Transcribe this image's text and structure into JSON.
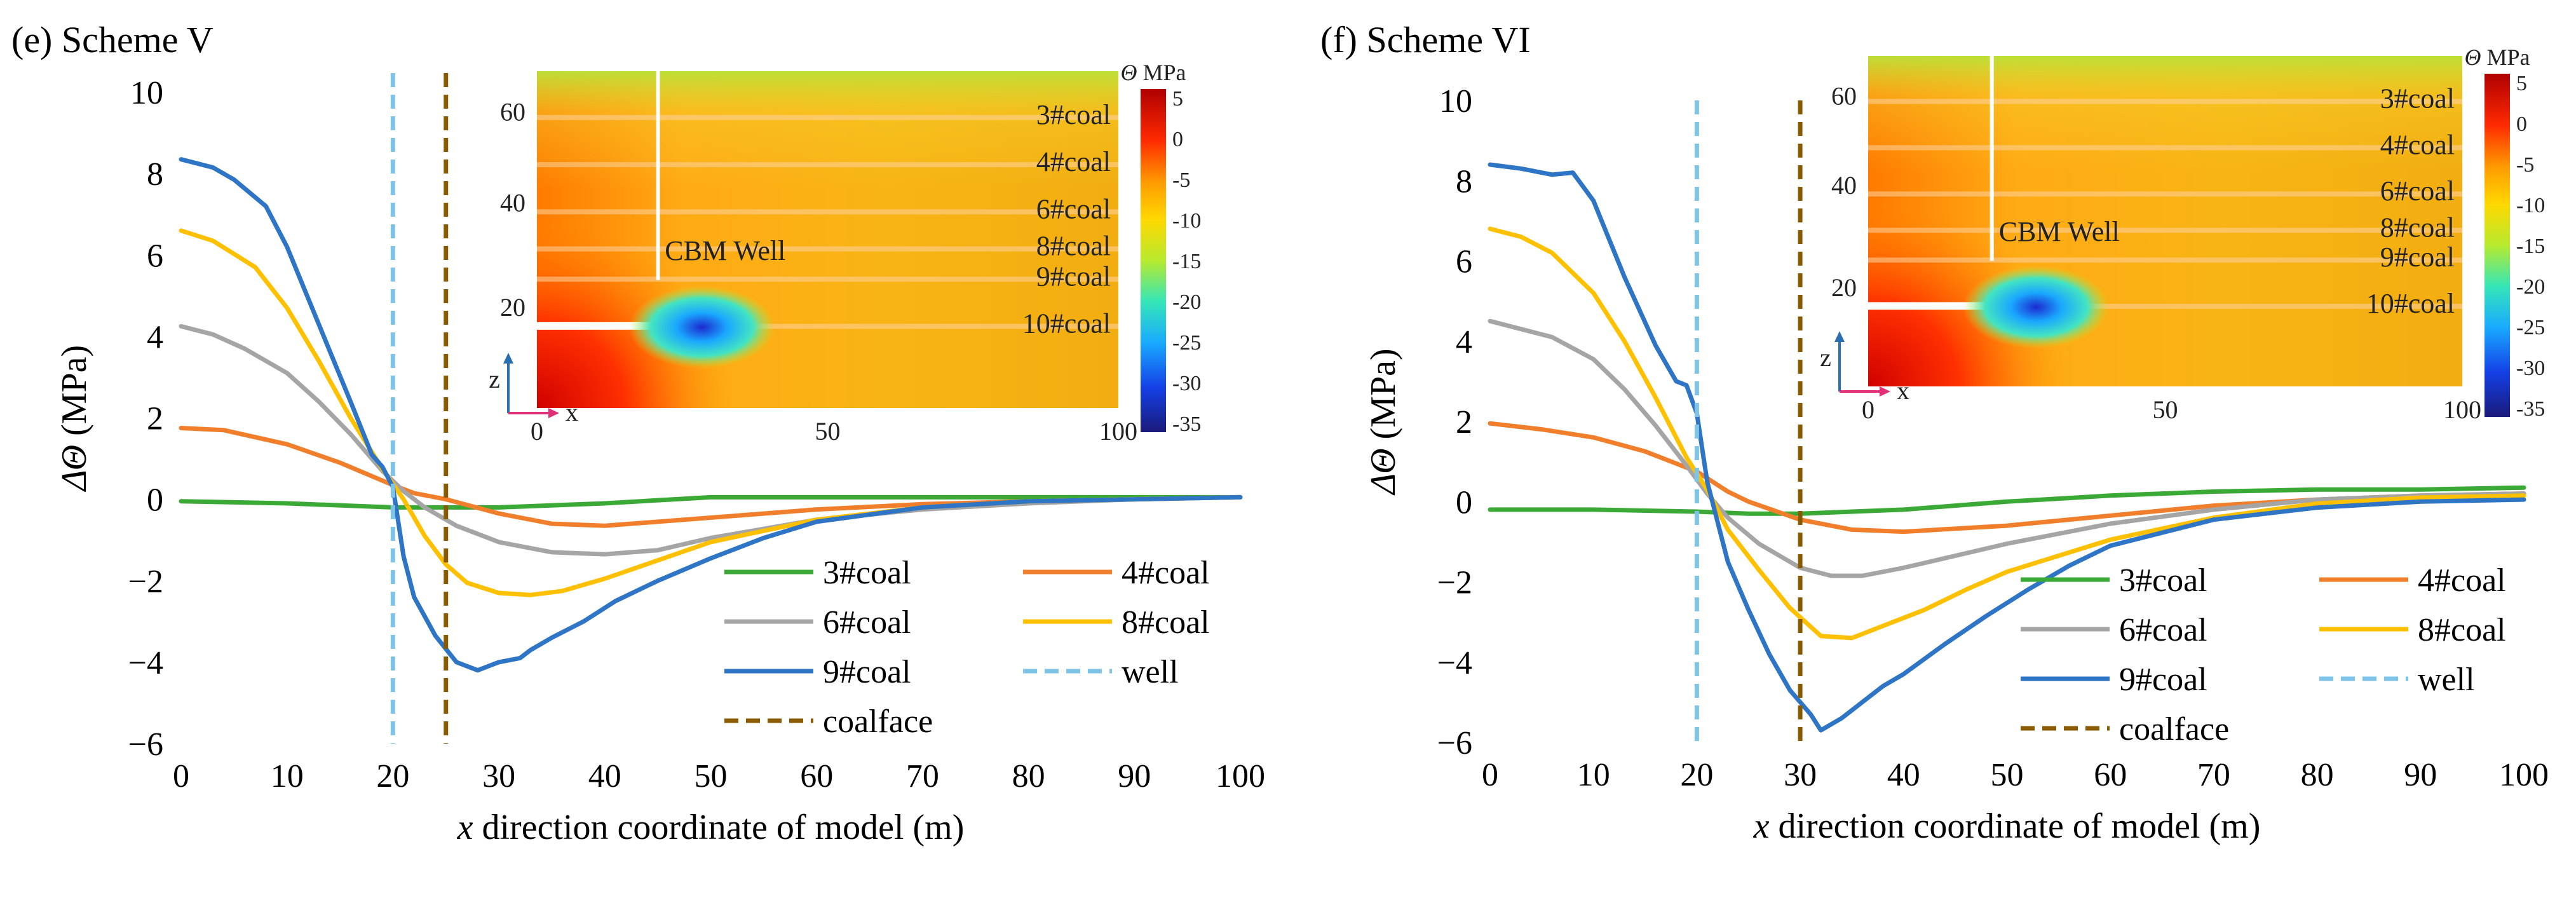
{
  "panels": [
    {
      "id": "e",
      "title": "(e) Scheme V",
      "chart_data": {
        "type": "line",
        "ylabel_symbol": "ΔΘ",
        "ylabel_unit": "(MPa)",
        "xlabel_symbol": "x",
        "xlabel_rest": "direction coordinate of model (m)",
        "xlim": [
          0,
          100
        ],
        "ylim": [
          -6,
          10
        ],
        "xticks": [
          0,
          10,
          20,
          30,
          40,
          50,
          60,
          70,
          80,
          90,
          100
        ],
        "yticks": [
          -6,
          -4,
          -2,
          0,
          2,
          4,
          6,
          8,
          10
        ],
        "series": [
          {
            "name": "3#coal",
            "color": "#3aa935",
            "style": "solid",
            "x": [
              0,
              10,
              20,
              22,
              25,
              30,
              40,
              50,
              60,
              70,
              80,
              90,
              100
            ],
            "y": [
              -0.05,
              -0.1,
              -0.2,
              -0.2,
              -0.2,
              -0.2,
              -0.1,
              0.05,
              0.05,
              0.05,
              0.05,
              0.05,
              0.05
            ]
          },
          {
            "name": "4#coal",
            "color": "#f07e2b",
            "style": "solid",
            "x": [
              0,
              4,
              10,
              15,
              20,
              22,
              25,
              30,
              35,
              40,
              50,
              60,
              70,
              80,
              90,
              100
            ],
            "y": [
              1.75,
              1.7,
              1.35,
              0.9,
              0.35,
              0.15,
              0.0,
              -0.35,
              -0.6,
              -0.65,
              -0.45,
              -0.25,
              -0.12,
              -0.05,
              0.0,
              0.05
            ]
          },
          {
            "name": "6#coal",
            "color": "#a5a5a5",
            "style": "solid",
            "x": [
              0,
              3,
              6,
              10,
              13,
              16,
              19,
              21,
              23,
              26,
              30,
              35,
              40,
              45,
              50,
              60,
              70,
              80,
              90,
              100
            ],
            "y": [
              4.25,
              4.05,
              3.7,
              3.1,
              2.4,
              1.6,
              0.7,
              0.2,
              -0.2,
              -0.65,
              -1.05,
              -1.3,
              -1.35,
              -1.25,
              -0.95,
              -0.5,
              -0.25,
              -0.1,
              0.0,
              0.05
            ]
          },
          {
            "name": "8#coal",
            "color": "#ffc000",
            "style": "solid",
            "x": [
              0,
              3,
              7,
              10,
              13,
              16,
              19,
              21,
              23,
              25,
              27,
              30,
              33,
              36,
              40,
              45,
              50,
              60,
              70,
              80,
              90,
              100
            ],
            "y": [
              6.6,
              6.35,
              5.7,
              4.7,
              3.4,
              2.0,
              0.75,
              0.0,
              -0.9,
              -1.6,
              -2.05,
              -2.3,
              -2.35,
              -2.25,
              -1.95,
              -1.5,
              -1.05,
              -0.5,
              -0.2,
              -0.05,
              0.0,
              0.05
            ]
          },
          {
            "name": "9#coal",
            "color": "#2e75c6",
            "style": "solid",
            "x": [
              0,
              3,
              5,
              8,
              10,
              13,
              16,
              18,
              19,
              20,
              21,
              22,
              24,
              26,
              28,
              30,
              32,
              33,
              35,
              38,
              41,
              45,
              50,
              55,
              60,
              70,
              80,
              90,
              100
            ],
            "y": [
              8.35,
              8.15,
              7.85,
              7.2,
              6.2,
              4.3,
              2.4,
              1.1,
              0.8,
              0.3,
              -1.4,
              -2.4,
              -3.35,
              -4.0,
              -4.2,
              -4.0,
              -3.9,
              -3.7,
              -3.4,
              -3.0,
              -2.5,
              -2.0,
              -1.45,
              -0.95,
              -0.55,
              -0.2,
              -0.05,
              0.0,
              0.05
            ]
          },
          {
            "name": "well",
            "color": "#7fc4e8",
            "style": "dash",
            "vline": 20
          },
          {
            "name": "coalface",
            "color": "#8a5a00",
            "style": "dash",
            "vline": 25
          }
        ]
      },
      "inset": {
        "xticks": [
          "0",
          "50",
          "100"
        ],
        "yticks": [
          "60",
          "40",
          "20"
        ],
        "axis_x": "x",
        "axis_z": "z",
        "labels": [
          "3#coal",
          "4#coal",
          "6#coal",
          "8#coal",
          "9#coal",
          "10#coal"
        ],
        "well_label": "CBM Well",
        "colorbar_title_symbol": "Θ",
        "colorbar_title_unit": "MPa",
        "colorbar_ticks": [
          "5",
          "0",
          "-5",
          "-10",
          "-15",
          "-20",
          "-25",
          "-30",
          "-35"
        ]
      }
    },
    {
      "id": "f",
      "title": "(f) Scheme VI",
      "chart_data": {
        "type": "line",
        "ylabel_symbol": "ΔΘ",
        "ylabel_unit": "(MPa)",
        "xlabel_symbol": "x",
        "xlabel_rest": "direction coordinate of model (m)",
        "xlim": [
          0,
          100
        ],
        "ylim": [
          -6,
          10
        ],
        "xticks": [
          0,
          10,
          20,
          30,
          40,
          50,
          60,
          70,
          80,
          90,
          100
        ],
        "yticks": [
          -6,
          -4,
          -2,
          0,
          2,
          4,
          6,
          8,
          10
        ],
        "series": [
          {
            "name": "3#coal",
            "color": "#3aa935",
            "style": "solid",
            "x": [
              0,
              10,
              20,
              25,
              30,
              40,
              50,
              60,
              70,
              80,
              90,
              100
            ],
            "y": [
              -0.2,
              -0.2,
              -0.25,
              -0.3,
              -0.3,
              -0.2,
              0.0,
              0.15,
              0.25,
              0.3,
              0.3,
              0.35
            ]
          },
          {
            "name": "4#coal",
            "color": "#f07e2b",
            "style": "solid",
            "x": [
              0,
              5,
              10,
              15,
              20,
              23,
              25,
              30,
              35,
              40,
              50,
              60,
              70,
              80,
              90,
              100
            ],
            "y": [
              1.95,
              1.8,
              1.6,
              1.25,
              0.75,
              0.25,
              0.0,
              -0.45,
              -0.7,
              -0.75,
              -0.6,
              -0.35,
              -0.1,
              0.05,
              0.15,
              0.2
            ]
          },
          {
            "name": "6#coal",
            "color": "#a5a5a5",
            "style": "solid",
            "x": [
              0,
              3,
              6,
              10,
              13,
              16,
              19,
              21,
              23,
              26,
              30,
              33,
              36,
              40,
              45,
              50,
              60,
              70,
              80,
              90,
              100
            ],
            "y": [
              4.5,
              4.3,
              4.1,
              3.55,
              2.8,
              1.9,
              0.9,
              0.2,
              -0.4,
              -1.05,
              -1.65,
              -1.85,
              -1.85,
              -1.65,
              -1.35,
              -1.05,
              -0.55,
              -0.2,
              0.05,
              0.15,
              0.2
            ]
          },
          {
            "name": "8#coal",
            "color": "#ffc000",
            "style": "solid",
            "x": [
              0,
              3,
              6,
              10,
              13,
              16,
              19,
              21,
              23,
              26,
              29,
              32,
              35,
              38,
              42,
              46,
              50,
              60,
              70,
              80,
              90,
              100
            ],
            "y": [
              6.8,
              6.6,
              6.2,
              5.2,
              4.0,
              2.6,
              1.1,
              0.3,
              -0.7,
              -1.7,
              -2.65,
              -3.35,
              -3.4,
              -3.1,
              -2.7,
              -2.2,
              -1.75,
              -0.95,
              -0.4,
              -0.05,
              0.1,
              0.15
            ]
          },
          {
            "name": "9#coal",
            "color": "#2e75c6",
            "style": "solid",
            "x": [
              0,
              3,
              6,
              8,
              10,
              13,
              16,
              18,
              19,
              20,
              21,
              23,
              25,
              27,
              29,
              31,
              32,
              34,
              36,
              38,
              40,
              44,
              48,
              52,
              56,
              60,
              70,
              80,
              90,
              100
            ],
            "y": [
              8.4,
              8.3,
              8.15,
              8.2,
              7.5,
              5.6,
              3.9,
              3.0,
              2.9,
              2.2,
              0.5,
              -1.5,
              -2.7,
              -3.8,
              -4.7,
              -5.3,
              -5.7,
              -5.4,
              -5.0,
              -4.6,
              -4.3,
              -3.55,
              -2.85,
              -2.2,
              -1.6,
              -1.1,
              -0.45,
              -0.15,
              0.0,
              0.05
            ]
          },
          {
            "name": "well",
            "color": "#7fc4e8",
            "style": "dash",
            "vline": 20
          },
          {
            "name": "coalface",
            "color": "#8a5a00",
            "style": "dash",
            "vline": 30
          }
        ]
      },
      "inset": {
        "xticks": [
          "0",
          "50",
          "100"
        ],
        "yticks": [
          "60",
          "40",
          "20"
        ],
        "axis_x": "x",
        "axis_z": "z",
        "labels": [
          "3#coal",
          "4#coal",
          "6#coal",
          "8#coal",
          "9#coal",
          "10#coal"
        ],
        "well_label": "CBM Well",
        "colorbar_title_symbol": "Θ",
        "colorbar_title_unit": "MPa",
        "colorbar_ticks": [
          "5",
          "0",
          "-5",
          "-10",
          "-15",
          "-20",
          "-25",
          "-30",
          "-35"
        ]
      }
    }
  ]
}
